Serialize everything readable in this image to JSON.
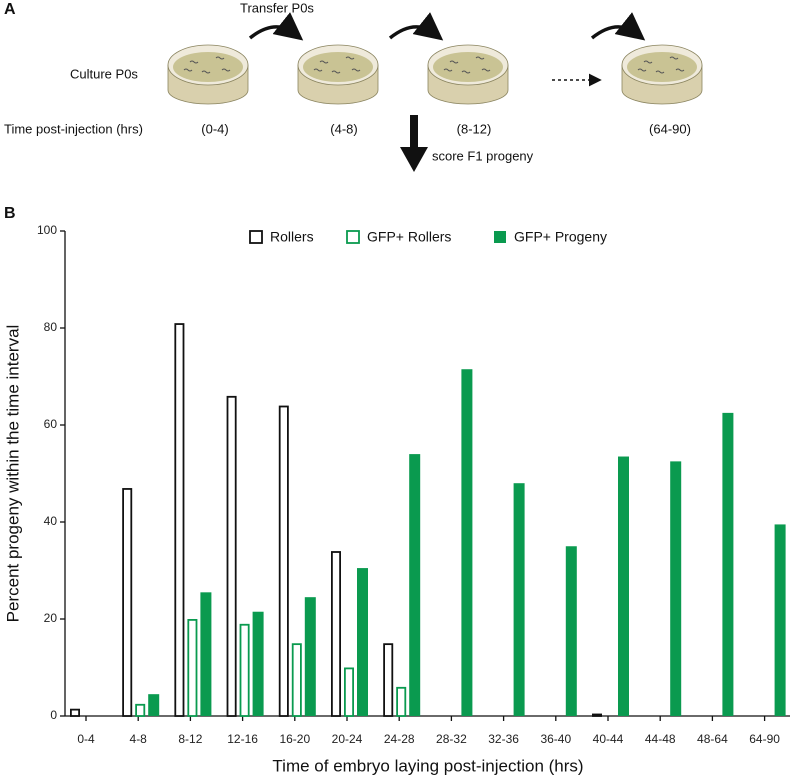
{
  "panel_labels": [
    "A",
    "B"
  ],
  "diagram": {
    "transfer": "Transfer P0s",
    "culture": "Culture P0s",
    "time_label": "Time post-injection (hrs)",
    "intervals": [
      "(0-4)",
      "(4-8)",
      "(8-12)",
      "(64-90)"
    ],
    "score": "score F1 progeny"
  },
  "chart_data": {
    "type": "bar",
    "xlabel": "Time of embryo laying post-injection (hrs)",
    "ylabel": "Percent progeny within the time interval",
    "categories": [
      "0-4",
      "4-8",
      "8-12",
      "12-16",
      "16-20",
      "20-24",
      "24-28",
      "28-32",
      "32-36",
      "36-40",
      "40-44",
      "44-48",
      "48-64",
      "64-90"
    ],
    "series": [
      {
        "name": "Rollers",
        "color": "#111111",
        "style": "outline",
        "values": [
          1.5,
          47,
          81,
          66,
          64,
          34,
          15,
          null,
          null,
          null,
          0.5,
          null,
          null,
          null
        ]
      },
      {
        "name": "GFP+ Rollers",
        "color": "#0a9a4f",
        "style": "outline",
        "values": [
          null,
          2.5,
          20,
          19,
          15,
          10,
          6,
          null,
          null,
          null,
          null,
          null,
          null,
          null
        ]
      },
      {
        "name": "GFP+ Progeny",
        "color": "#0a9a4f",
        "style": "filled",
        "values": [
          null,
          4.5,
          25.5,
          21.5,
          24.5,
          30.5,
          54,
          71.5,
          48,
          35,
          53.5,
          52.5,
          62.5,
          39.5
        ]
      }
    ],
    "ylim": [
      0,
      100
    ],
    "yticks": [
      0,
      20,
      40,
      60,
      80,
      100
    ],
    "legend": "top",
    "grid": false
  }
}
